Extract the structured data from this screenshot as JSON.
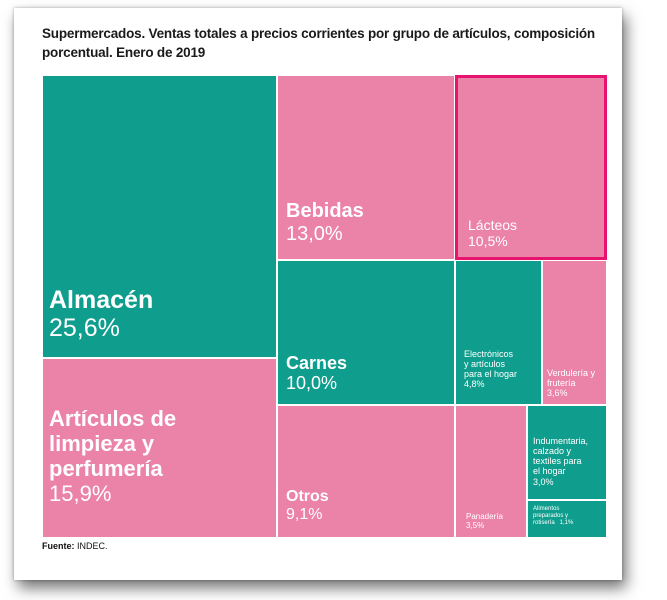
{
  "title": "Supermercados. Ventas totales a precios corrientes por grupo de artículos, composición porcentual. Enero de 2019",
  "footer": {
    "label": "Fuente:",
    "source": "INDEC."
  },
  "colors": {
    "teal": "#0f9e8d",
    "pink": "#eb82a8",
    "highlight": "#e8136f"
  },
  "chart_data": {
    "type": "treemap",
    "title": "Supermercados. Ventas totales a precios corrientes por grupo de artículos, composición porcentual. Enero de 2019",
    "unit": "%",
    "highlighted": "Lácteos",
    "items": [
      {
        "name": "Almacén",
        "value": 25.6,
        "value_label": "25,6%",
        "color": "#0f9e8d"
      },
      {
        "name": "Artículos de limpieza y perfumería",
        "value": 15.9,
        "value_label": "15,9%",
        "color": "#eb82a8"
      },
      {
        "name": "Bebidas",
        "value": 13.0,
        "value_label": "13,0%",
        "color": "#eb82a8"
      },
      {
        "name": "Lácteos",
        "value": 10.5,
        "value_label": "10,5%",
        "color": "#eb82a8"
      },
      {
        "name": "Carnes",
        "value": 10.0,
        "value_label": "10,0%",
        "color": "#0f9e8d"
      },
      {
        "name": "Otros",
        "value": 9.1,
        "value_label": "9,1%",
        "color": "#eb82a8"
      },
      {
        "name": "Electrónicos y artículos para el hogar",
        "value": 4.8,
        "value_label": "4,8%",
        "color": "#0f9e8d"
      },
      {
        "name": "Verdulería y frutería",
        "value": 3.6,
        "value_label": "3,6%",
        "color": "#eb82a8"
      },
      {
        "name": "Panadería",
        "value": 3.5,
        "value_label": "3,5%",
        "color": "#eb82a8"
      },
      {
        "name": "Indumentaria, calzado y textiles para el hogar",
        "value": 3.0,
        "value_label": "3,0%",
        "color": "#0f9e8d"
      },
      {
        "name": "Alimentos preparados y rotisería",
        "value": 1.1,
        "value_label": "1,1%",
        "color": "#0f9e8d"
      }
    ]
  }
}
